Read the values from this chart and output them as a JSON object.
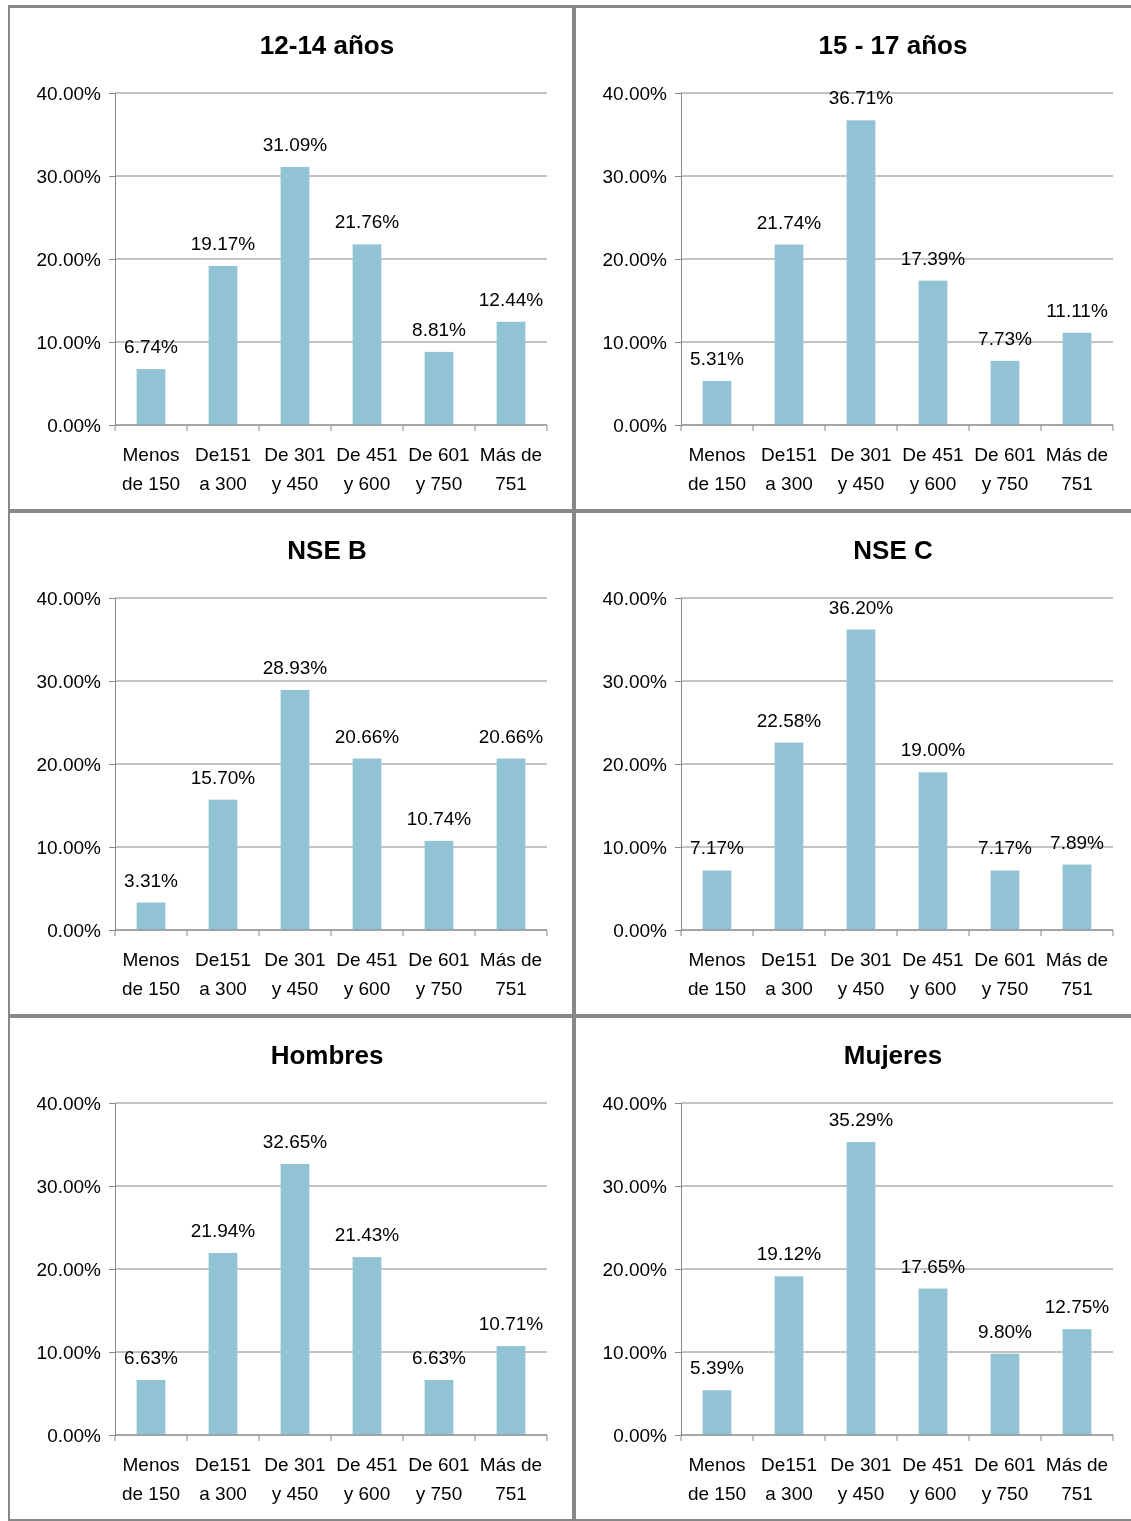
{
  "chart_data": [
    {
      "type": "bar",
      "title": "12-14 años",
      "categories": [
        "Menos de 150",
        "De151 a 300",
        "De 301 y 450",
        "De 451 y 600",
        "De 601 y 750",
        "Más de 751"
      ],
      "values": [
        6.74,
        19.17,
        31.09,
        21.76,
        8.81,
        12.44
      ],
      "value_labels": [
        "6.74%",
        "19.17%",
        "31.09%",
        "21.76%",
        "8.81%",
        "12.44%"
      ],
      "color": "#92c3d5",
      "ylim": [
        0,
        40
      ],
      "yticks": [
        {
          "value": 0,
          "label": "0.00%"
        },
        {
          "value": 10,
          "label": "10.00%"
        },
        {
          "value": 20,
          "label": "20.00%"
        },
        {
          "value": 30,
          "label": "30.00%"
        },
        {
          "value": 40,
          "label": "40.00%"
        }
      ],
      "grid": "y"
    },
    {
      "type": "bar",
      "title": "15 - 17 años",
      "categories": [
        "Menos de 150",
        "De151 a 300",
        "De 301 y 450",
        "De 451 y 600",
        "De 601 y 750",
        "Más de 751"
      ],
      "values": [
        5.31,
        21.74,
        36.71,
        17.39,
        7.73,
        11.11
      ],
      "value_labels": [
        "5.31%",
        "21.74%",
        "36.71%",
        "17.39%",
        "7.73%",
        "11.11%"
      ],
      "color": "#92c3d5",
      "ylim": [
        0,
        40
      ],
      "yticks": [
        {
          "value": 0,
          "label": "0.00%"
        },
        {
          "value": 10,
          "label": "10.00%"
        },
        {
          "value": 20,
          "label": "20.00%"
        },
        {
          "value": 30,
          "label": "30.00%"
        },
        {
          "value": 40,
          "label": "40.00%"
        }
      ],
      "grid": "y"
    },
    {
      "type": "bar",
      "title": "NSE B",
      "categories": [
        "Menos de 150",
        "De151 a 300",
        "De 301 y 450",
        "De 451 y 600",
        "De 601 y 750",
        "Más de 751"
      ],
      "values": [
        3.31,
        15.7,
        28.93,
        20.66,
        10.74,
        20.66
      ],
      "value_labels": [
        "3.31%",
        "15.70%",
        "28.93%",
        "20.66%",
        "10.74%",
        "20.66%"
      ],
      "color": "#92c3d5",
      "ylim": [
        0,
        40
      ],
      "yticks": [
        {
          "value": 0,
          "label": "0.00%"
        },
        {
          "value": 10,
          "label": "10.00%"
        },
        {
          "value": 20,
          "label": "20.00%"
        },
        {
          "value": 30,
          "label": "30.00%"
        },
        {
          "value": 40,
          "label": "40.00%"
        }
      ],
      "grid": "y"
    },
    {
      "type": "bar",
      "title": "NSE C",
      "categories": [
        "Menos de 150",
        "De151 a 300",
        "De 301 y 450",
        "De 451 y 600",
        "De 601 y 750",
        "Más de 751"
      ],
      "values": [
        7.17,
        22.58,
        36.2,
        19.0,
        7.17,
        7.89
      ],
      "value_labels": [
        "7.17%",
        "22.58%",
        "36.20%",
        "19.00%",
        "7.17%",
        "7.89%"
      ],
      "color": "#92c3d5",
      "ylim": [
        0,
        40
      ],
      "yticks": [
        {
          "value": 0,
          "label": "0.00%"
        },
        {
          "value": 10,
          "label": "10.00%"
        },
        {
          "value": 20,
          "label": "20.00%"
        },
        {
          "value": 30,
          "label": "30.00%"
        },
        {
          "value": 40,
          "label": "40.00%"
        }
      ],
      "grid": "y"
    },
    {
      "type": "bar",
      "title": "Hombres",
      "categories": [
        "Menos de 150",
        "De151 a 300",
        "De 301 y 450",
        "De 451 y 600",
        "De 601 y 750",
        "Más de 751"
      ],
      "values": [
        6.63,
        21.94,
        32.65,
        21.43,
        6.63,
        10.71
      ],
      "value_labels": [
        "6.63%",
        "21.94%",
        "32.65%",
        "21.43%",
        "6.63%",
        "10.71%"
      ],
      "color": "#92c3d5",
      "ylim": [
        0,
        40
      ],
      "yticks": [
        {
          "value": 0,
          "label": "0.00%"
        },
        {
          "value": 10,
          "label": "10.00%"
        },
        {
          "value": 20,
          "label": "20.00%"
        },
        {
          "value": 30,
          "label": "30.00%"
        },
        {
          "value": 40,
          "label": "40.00%"
        }
      ],
      "grid": "y"
    },
    {
      "type": "bar",
      "title": "Mujeres",
      "categories": [
        "Menos de 150",
        "De151 a 300",
        "De 301 y 450",
        "De 451 y 600",
        "De 601 y 750",
        "Más de 751"
      ],
      "values": [
        5.39,
        19.12,
        35.29,
        17.65,
        9.8,
        12.75
      ],
      "value_labels": [
        "5.39%",
        "19.12%",
        "35.29%",
        "17.65%",
        "9.80%",
        "12.75%"
      ],
      "color": "#92c3d5",
      "ylim": [
        0,
        40
      ],
      "yticks": [
        {
          "value": 0,
          "label": "0.00%"
        },
        {
          "value": 10,
          "label": "10.00%"
        },
        {
          "value": 20,
          "label": "20.00%"
        },
        {
          "value": 30,
          "label": "30.00%"
        },
        {
          "value": 40,
          "label": "40.00%"
        }
      ],
      "grid": "y"
    }
  ]
}
